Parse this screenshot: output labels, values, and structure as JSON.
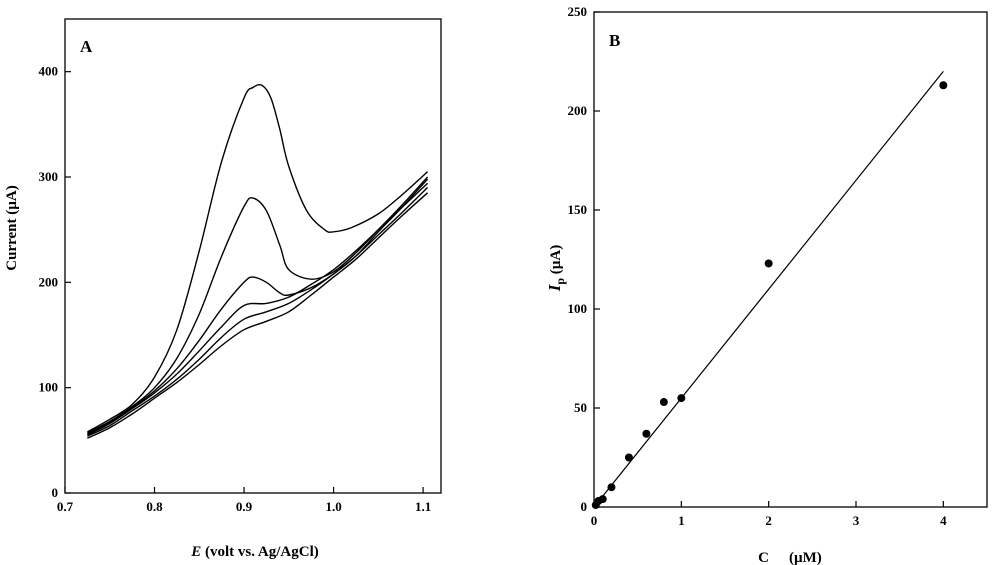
{
  "chart_data": [
    {
      "type": "line",
      "panel_label": "A",
      "xlabel_italic": "E",
      "xlabel_rest": " (volt vs. Ag/AgCl)",
      "ylabel": "Current (µA)",
      "xlim": [
        0.7,
        1.12
      ],
      "ylim": [
        0,
        450
      ],
      "xticks": [
        "0.7",
        "0.8",
        "0.9",
        "1.0",
        "1.1"
      ],
      "xtick_values": [
        0.7,
        0.8,
        0.9,
        1.0,
        1.1
      ],
      "yticks": [
        "0",
        "100",
        "200",
        "300",
        "400"
      ],
      "ytick_values": [
        0,
        100,
        200,
        300,
        400
      ],
      "series": [
        {
          "x": [
            0.725,
            0.75,
            0.775,
            0.8,
            0.825,
            0.85,
            0.875,
            0.9,
            0.925,
            0.95,
            0.975,
            1.0,
            1.025,
            1.05,
            1.075,
            1.105
          ],
          "y": [
            52,
            62,
            75,
            90,
            105,
            122,
            140,
            155,
            163,
            172,
            188,
            205,
            222,
            242,
            262,
            285
          ]
        },
        {
          "x": [
            0.725,
            0.75,
            0.775,
            0.8,
            0.825,
            0.85,
            0.875,
            0.9,
            0.925,
            0.95,
            0.975,
            1.0,
            1.025,
            1.05,
            1.075,
            1.105
          ],
          "y": [
            54,
            64,
            78,
            92,
            108,
            127,
            148,
            165,
            172,
            180,
            193,
            208,
            225,
            245,
            265,
            290
          ]
        },
        {
          "x": [
            0.725,
            0.75,
            0.775,
            0.8,
            0.825,
            0.85,
            0.875,
            0.9,
            0.925,
            0.95,
            0.975,
            1.0,
            1.025,
            1.05,
            1.075,
            1.105
          ],
          "y": [
            55,
            66,
            80,
            95,
            113,
            135,
            158,
            178,
            180,
            186,
            198,
            212,
            230,
            250,
            270,
            294
          ]
        },
        {
          "x": [
            0.725,
            0.75,
            0.775,
            0.8,
            0.825,
            0.85,
            0.875,
            0.9,
            0.91,
            0.925,
            0.94,
            0.95,
            0.975,
            1.0,
            1.025,
            1.05,
            1.075,
            1.105
          ],
          "y": [
            56,
            67,
            81,
            97,
            118,
            145,
            175,
            200,
            205,
            200,
            190,
            188,
            195,
            208,
            225,
            248,
            270,
            298
          ]
        },
        {
          "x": [
            0.725,
            0.75,
            0.775,
            0.8,
            0.825,
            0.85,
            0.875,
            0.9,
            0.91,
            0.925,
            0.94,
            0.95,
            0.975,
            1.0,
            1.025,
            1.05,
            1.075,
            1.105
          ],
          "y": [
            57,
            68,
            82,
            100,
            128,
            170,
            225,
            272,
            280,
            268,
            235,
            212,
            203,
            210,
            228,
            250,
            272,
            300
          ]
        },
        {
          "x": [
            0.725,
            0.75,
            0.775,
            0.8,
            0.825,
            0.85,
            0.875,
            0.9,
            0.91,
            0.92,
            0.93,
            0.94,
            0.95,
            0.97,
            0.99,
            1.0,
            1.02,
            1.05,
            1.075,
            1.105
          ],
          "y": [
            58,
            70,
            84,
            110,
            155,
            230,
            315,
            375,
            385,
            387,
            375,
            345,
            310,
            268,
            250,
            248,
            252,
            265,
            282,
            305
          ]
        }
      ]
    },
    {
      "type": "scatter",
      "panel_label": "B",
      "ylabel_main": "I",
      "ylabel_sub": "p",
      "ylabel_rest": " (µA)",
      "xlabel": "C",
      "xlabel_rest": "(µM)",
      "xlim": [
        0,
        4.5
      ],
      "ylim": [
        0,
        250
      ],
      "xticks": [
        "0",
        "1",
        "2",
        "3",
        "4"
      ],
      "xtick_values": [
        0,
        1,
        2,
        3,
        4
      ],
      "yticks": [
        "0",
        "50",
        "100",
        "150",
        "200",
        "250"
      ],
      "ytick_values": [
        0,
        50,
        100,
        150,
        200,
        250
      ],
      "points": {
        "x": [
          0.02,
          0.05,
          0.1,
          0.2,
          0.4,
          0.6,
          0.8,
          1.0,
          2.0,
          4.0
        ],
        "y": [
          1,
          3,
          4,
          10,
          25,
          37,
          53,
          55,
          123,
          213
        ]
      },
      "fit": {
        "x": [
          0,
          4.0
        ],
        "y": [
          -2,
          220
        ]
      }
    }
  ]
}
